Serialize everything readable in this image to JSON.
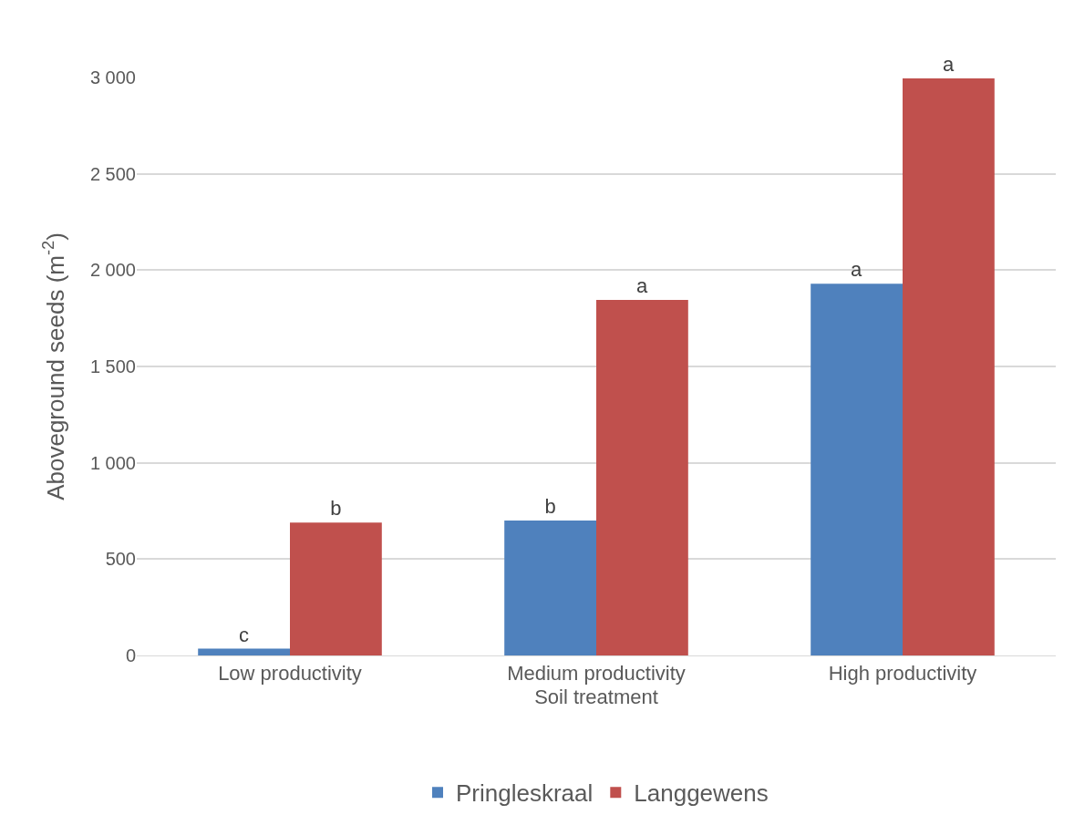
{
  "chart_data": {
    "type": "bar",
    "xlabel": "Soil treatment",
    "ylabel": "Aboveground seeds (m$^{-2}$)",
    "categories": [
      "Low productivity",
      "Medium productivity",
      "High productivity"
    ],
    "series": [
      {
        "name": "Pringleskraal",
        "color": "#4f81bd",
        "values": [
          35,
          700,
          1930
        ],
        "value_labels": [
          "c",
          "b",
          "a"
        ]
      },
      {
        "name": "Langgewens",
        "color": "#c0504d",
        "values": [
          690,
          1845,
          2995
        ],
        "value_labels": [
          "b",
          "a",
          "a"
        ]
      }
    ],
    "ylim": [
      0,
      3000
    ],
    "yticks": [
      0,
      500,
      {
        "value": 1000,
        "label": "1 000"
      },
      {
        "value": 1500,
        "label": "1 500"
      },
      {
        "value": 2000,
        "label": "2 000"
      },
      {
        "value": 2500,
        "label": "2 500"
      },
      {
        "value": 3000,
        "label": "3 000"
      }
    ],
    "grid": "y",
    "legend": "bottom"
  }
}
